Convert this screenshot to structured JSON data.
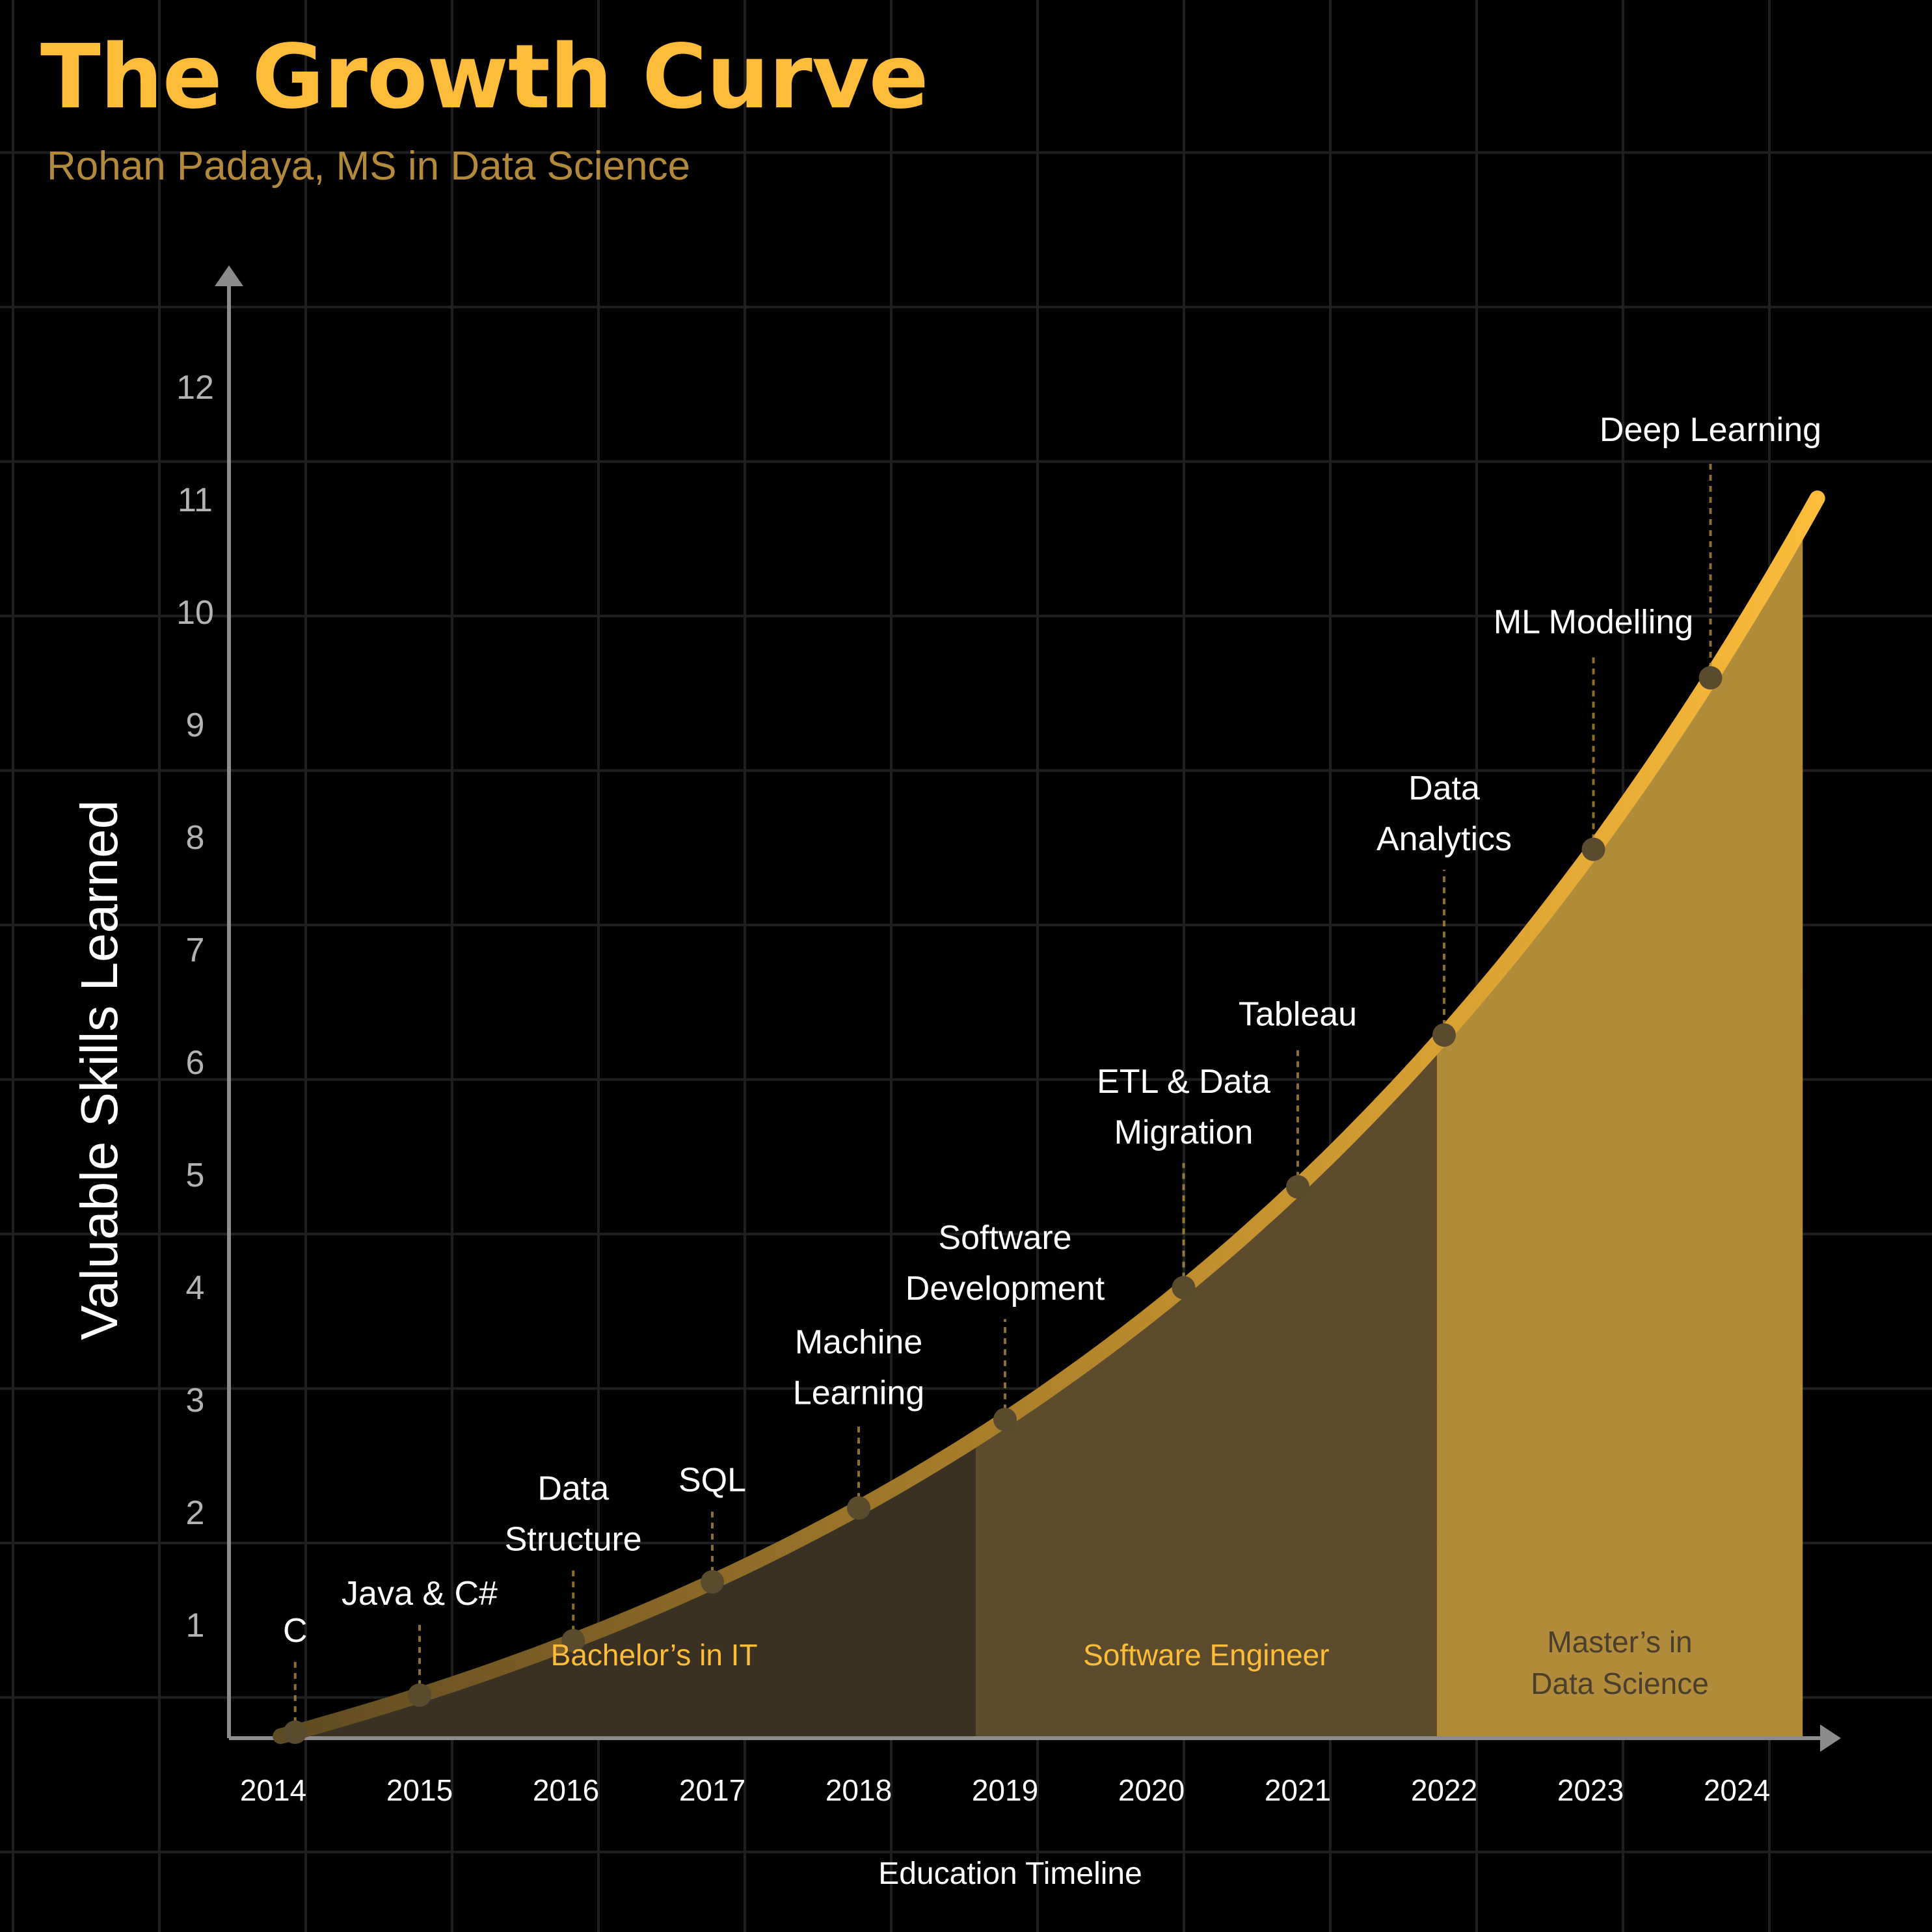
{
  "chart_data": {
    "type": "area",
    "title": "The Growth Curve",
    "subtitle": "Rohan Padaya, MS in Data Science",
    "xlabel": "Education Timeline",
    "ylabel": "Valuable Skills Learned",
    "x_ticks": [
      "2014",
      "2015",
      "2016",
      "2017",
      "2018",
      "2019",
      "2020",
      "2021",
      "2022",
      "2023",
      "2024"
    ],
    "y_ticks": [
      1,
      2,
      3,
      4,
      5,
      6,
      7,
      8,
      9,
      10,
      11,
      12
    ],
    "xlim": [
      2013.9,
      2024.6
    ],
    "ylim": [
      -0.3,
      12.8
    ],
    "grid": true,
    "colors": {
      "curve_start": "#5E4A22",
      "curve_end": "#FDBC3A",
      "point": "#5A4A2E",
      "grid": "#1F1F1F",
      "axis": "#8C8C8C"
    },
    "curve": [
      {
        "x": 2014.05,
        "y": 0.0
      },
      {
        "x": 2024.55,
        "y": 11.0
      }
    ],
    "points": [
      {
        "label": "C",
        "x": 2014.15,
        "y": 0.05
      },
      {
        "label": "Java & C#",
        "x": 2015.0,
        "y": 0.77
      },
      {
        "label": "Data Structure",
        "x": 2016.05,
        "y": 1.48
      },
      {
        "label": "SQL",
        "x": 2017.0,
        "y": 2.1
      },
      {
        "label": "Machine Learning",
        "x": 2018.0,
        "y": 2.85
      },
      {
        "label": "Software Development",
        "x": 2019.0,
        "y": 3.68
      },
      {
        "label": "ETL & Data Migration",
        "x": 2020.22,
        "y": 4.92
      },
      {
        "label": "Tableau",
        "x": 2021.0,
        "y": 5.8
      },
      {
        "label": "Data Analytics",
        "x": 2022.0,
        "y": 7.0
      },
      {
        "label": "ML Modelling",
        "x": 2023.02,
        "y": 8.6
      },
      {
        "label": "Deep Learning",
        "x": 2023.82,
        "y": 9.8
      }
    ],
    "phases": [
      {
        "label": "Bachelor’s in IT",
        "x_start": 2014.05,
        "x_end": 2018.8,
        "color": "#3A3122",
        "text_color": "#FDBC3A"
      },
      {
        "label": "Software Engineer",
        "x_start": 2018.8,
        "x_end": 2021.95,
        "color": "#5C4B2C",
        "text_color": "#FDBC3A"
      },
      {
        "label": "Master’s in Data Science",
        "x_start": 2021.95,
        "x_end": 2024.45,
        "color": "#B08B3A",
        "text_color": "#4A3E2C"
      }
    ]
  }
}
